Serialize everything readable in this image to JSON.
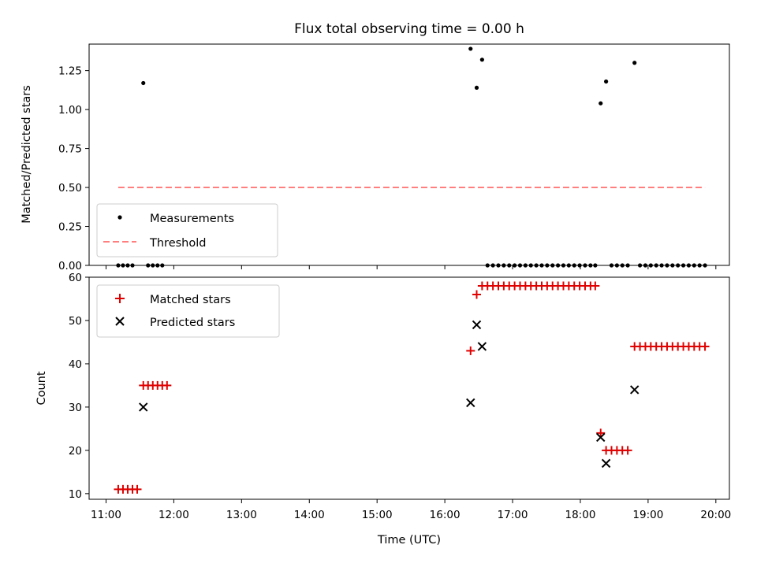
{
  "title": "Flux total observing time = 0.00 h",
  "xlabel": "Time (UTC)",
  "x_ticks": [
    "11:00",
    "12:00",
    "13:00",
    "14:00",
    "15:00",
    "16:00",
    "17:00",
    "18:00",
    "19:00",
    "20:00"
  ],
  "colors": {
    "measurements": "#000000",
    "threshold": "#ff7f7f",
    "matched": "#e00000",
    "predicted": "#000000"
  },
  "chart_data": [
    {
      "type": "scatter",
      "ylabel": "Matched/Predicted stars",
      "xlim": [
        10.75,
        20.2
      ],
      "ylim": [
        0,
        1.42
      ],
      "y_ticks": [
        "0.00",
        "0.25",
        "0.50",
        "0.75",
        "1.00",
        "1.25"
      ],
      "legend_position": "lower-left",
      "series": [
        {
          "name": "Measurements",
          "marker": "dot",
          "points": [
            [
              11.18,
              0
            ],
            [
              11.25,
              0
            ],
            [
              11.32,
              0
            ],
            [
              11.39,
              0
            ],
            [
              11.55,
              1.17
            ],
            [
              11.62,
              0
            ],
            [
              11.69,
              0
            ],
            [
              11.76,
              0
            ],
            [
              11.83,
              0
            ],
            [
              16.38,
              1.39
            ],
            [
              16.47,
              1.14
            ],
            [
              16.55,
              1.32
            ],
            [
              16.63,
              0
            ],
            [
              16.71,
              0
            ],
            [
              16.79,
              0
            ],
            [
              16.87,
              0
            ],
            [
              16.95,
              0
            ],
            [
              17.03,
              0
            ],
            [
              17.11,
              0
            ],
            [
              17.19,
              0
            ],
            [
              17.27,
              0
            ],
            [
              17.35,
              0
            ],
            [
              17.43,
              0
            ],
            [
              17.51,
              0
            ],
            [
              17.59,
              0
            ],
            [
              17.67,
              0
            ],
            [
              17.75,
              0
            ],
            [
              17.83,
              0
            ],
            [
              17.91,
              0
            ],
            [
              17.99,
              0
            ],
            [
              18.07,
              0
            ],
            [
              18.15,
              0
            ],
            [
              18.22,
              0
            ],
            [
              18.3,
              1.04
            ],
            [
              18.38,
              1.18
            ],
            [
              18.46,
              0
            ],
            [
              18.54,
              0
            ],
            [
              18.62,
              0
            ],
            [
              18.7,
              0
            ],
            [
              18.8,
              1.3
            ],
            [
              18.88,
              0
            ],
            [
              18.96,
              0
            ],
            [
              19.04,
              0
            ],
            [
              19.12,
              0
            ],
            [
              19.2,
              0
            ],
            [
              19.28,
              0
            ],
            [
              19.36,
              0
            ],
            [
              19.44,
              0
            ],
            [
              19.52,
              0
            ],
            [
              19.6,
              0
            ],
            [
              19.68,
              0
            ],
            [
              19.76,
              0
            ],
            [
              19.84,
              0
            ]
          ]
        },
        {
          "name": "Threshold",
          "line_style": "dashed",
          "x": [
            11.18,
            19.84
          ],
          "y": [
            0.5,
            0.5
          ]
        }
      ]
    },
    {
      "type": "scatter",
      "ylabel": "Count",
      "xlim": [
        10.75,
        20.2
      ],
      "ylim": [
        8.7,
        60
      ],
      "y_ticks": [
        "10",
        "20",
        "30",
        "40",
        "50",
        "60"
      ],
      "legend_position": "upper-left",
      "series": [
        {
          "name": "Matched stars",
          "marker": "plus",
          "points": [
            [
              11.18,
              11
            ],
            [
              11.25,
              11
            ],
            [
              11.32,
              11
            ],
            [
              11.39,
              11
            ],
            [
              11.46,
              11
            ],
            [
              11.55,
              35
            ],
            [
              11.62,
              35
            ],
            [
              11.69,
              35
            ],
            [
              11.76,
              35
            ],
            [
              11.83,
              35
            ],
            [
              11.9,
              35
            ],
            [
              16.38,
              43
            ],
            [
              16.47,
              56
            ],
            [
              16.55,
              58
            ],
            [
              16.63,
              58
            ],
            [
              16.71,
              58
            ],
            [
              16.79,
              58
            ],
            [
              16.87,
              58
            ],
            [
              16.95,
              58
            ],
            [
              17.03,
              58
            ],
            [
              17.11,
              58
            ],
            [
              17.19,
              58
            ],
            [
              17.27,
              58
            ],
            [
              17.35,
              58
            ],
            [
              17.43,
              58
            ],
            [
              17.51,
              58
            ],
            [
              17.59,
              58
            ],
            [
              17.67,
              58
            ],
            [
              17.75,
              58
            ],
            [
              17.83,
              58
            ],
            [
              17.91,
              58
            ],
            [
              17.99,
              58
            ],
            [
              18.07,
              58
            ],
            [
              18.15,
              58
            ],
            [
              18.22,
              58
            ],
            [
              18.3,
              24
            ],
            [
              18.38,
              20
            ],
            [
              18.46,
              20
            ],
            [
              18.54,
              20
            ],
            [
              18.62,
              20
            ],
            [
              18.7,
              20
            ],
            [
              18.8,
              44
            ],
            [
              18.88,
              44
            ],
            [
              18.96,
              44
            ],
            [
              19.04,
              44
            ],
            [
              19.12,
              44
            ],
            [
              19.2,
              44
            ],
            [
              19.28,
              44
            ],
            [
              19.36,
              44
            ],
            [
              19.44,
              44
            ],
            [
              19.52,
              44
            ],
            [
              19.6,
              44
            ],
            [
              19.68,
              44
            ],
            [
              19.76,
              44
            ],
            [
              19.84,
              44
            ]
          ]
        },
        {
          "name": "Predicted stars",
          "marker": "x",
          "points": [
            [
              11.55,
              30
            ],
            [
              16.38,
              31
            ],
            [
              16.47,
              49
            ],
            [
              16.55,
              44
            ],
            [
              18.3,
              23
            ],
            [
              18.38,
              17
            ],
            [
              18.8,
              34
            ]
          ]
        }
      ]
    }
  ]
}
